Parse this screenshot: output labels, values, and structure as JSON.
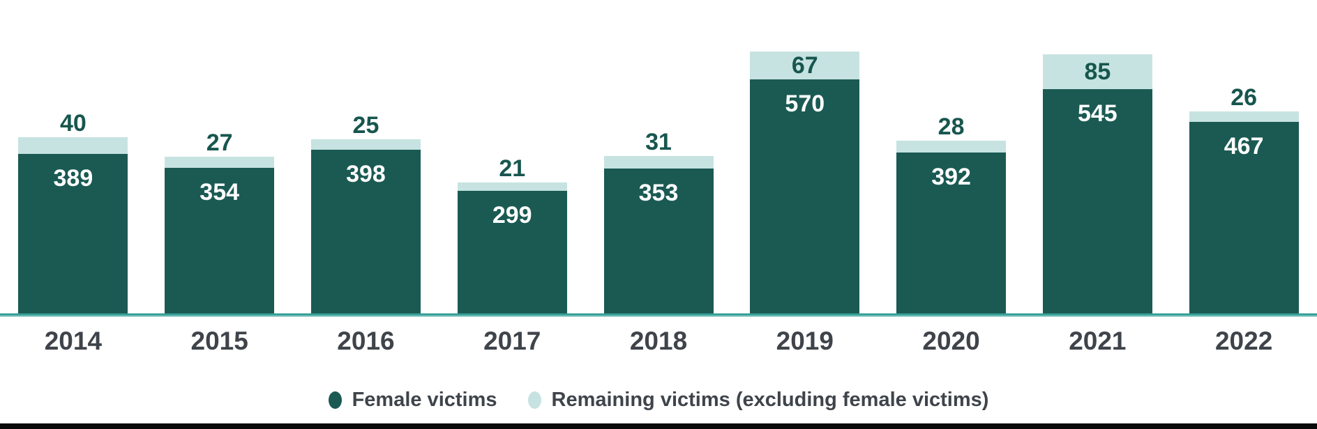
{
  "chart_data": {
    "type": "bar",
    "stacked": true,
    "categories": [
      "2014",
      "2015",
      "2016",
      "2017",
      "2018",
      "2019",
      "2020",
      "2021",
      "2022"
    ],
    "series": [
      {
        "name": "Female victims",
        "color": "#1A5A53",
        "values": [
          389,
          354,
          398,
          299,
          353,
          570,
          392,
          545,
          467
        ]
      },
      {
        "name": "Remaining victims (excluding female victims)",
        "color": "#C6E3E1",
        "values": [
          40,
          27,
          25,
          21,
          31,
          67,
          28,
          85,
          26
        ]
      }
    ],
    "totals": [
      429,
      381,
      423,
      320,
      384,
      637,
      420,
      630,
      493
    ],
    "title": "",
    "xlabel": "",
    "ylabel": "",
    "ylim": [
      0,
      637
    ],
    "grid": false,
    "value_labels": true,
    "legend_position": "bottom",
    "baseline_color": "#37A098"
  },
  "colors": {
    "female": "#1A5A53",
    "remaining": "#C6E3E1",
    "value_text": "#17564E",
    "axis_text": "#3F444B",
    "axis_line": "#37A098",
    "bar_value_on_dark": "#FFFFFF",
    "bottom_bar": "#0A0A0A"
  },
  "legend": {
    "items": [
      {
        "label": "Female victims",
        "swatch": "dark-teal-dot"
      },
      {
        "label": "Remaining victims (excluding female victims)",
        "swatch": "light-teal-dot"
      }
    ]
  }
}
